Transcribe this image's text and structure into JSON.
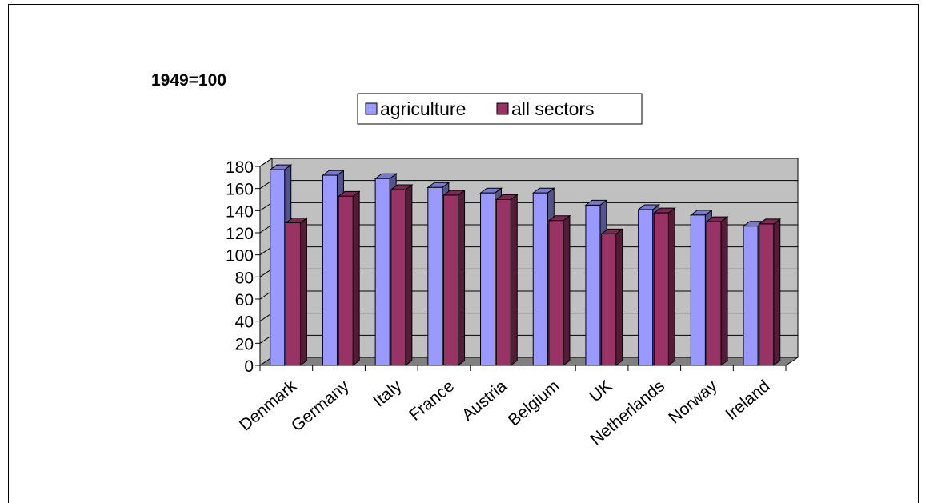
{
  "chart_data": {
    "type": "bar",
    "subtitle": "1949=100",
    "categories": [
      "Denmark",
      "Germany",
      "Italy",
      "France",
      "Austria",
      "Belgium",
      "UK",
      "Netherlands",
      "Norway",
      "Ireland"
    ],
    "series": [
      {
        "name": "agriculture",
        "color": "#9999FF",
        "values": [
          177,
          172,
          169,
          161,
          156,
          156,
          145,
          141,
          136,
          126
        ]
      },
      {
        "name": "all sectors",
        "color": "#993366",
        "values": [
          129,
          153,
          159,
          154,
          150,
          131,
          119,
          138,
          130,
          128
        ]
      }
    ],
    "yticks": [
      0,
      20,
      40,
      60,
      80,
      100,
      120,
      140,
      160,
      180
    ],
    "ylim": [
      0,
      180
    ],
    "grid": true,
    "legend": "top-center",
    "style": "3d-clustered-column",
    "wall_color": "#C0C0C0",
    "floor_color": "#808080"
  }
}
